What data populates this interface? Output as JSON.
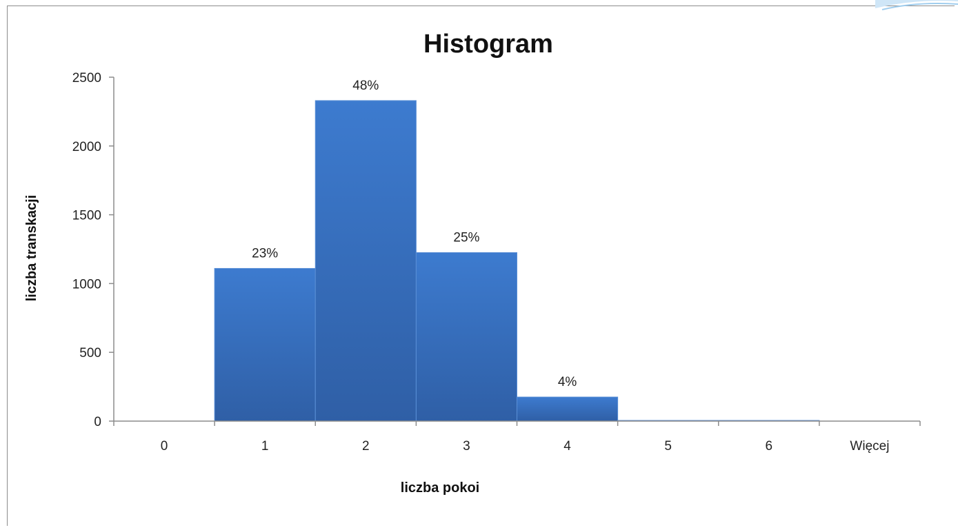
{
  "chart_data": {
    "type": "bar",
    "title": "Histogram",
    "xlabel": "liczba pokoi",
    "ylabel": "liczba transkacji",
    "categories": [
      "0",
      "1",
      "2",
      "3",
      "4",
      "5",
      "6",
      "Więcej"
    ],
    "values": [
      0,
      1110,
      2330,
      1225,
      175,
      5,
      5,
      0
    ],
    "data_labels": [
      "",
      "23%",
      "48%",
      "25%",
      "4%",
      "",
      "",
      ""
    ],
    "ylim": [
      0,
      2500
    ],
    "yticks": [
      0,
      500,
      1000,
      1500,
      2000,
      2500
    ],
    "grid": false,
    "legend": "none",
    "bar_color": "#3a72c0",
    "bar_gap": 0
  }
}
